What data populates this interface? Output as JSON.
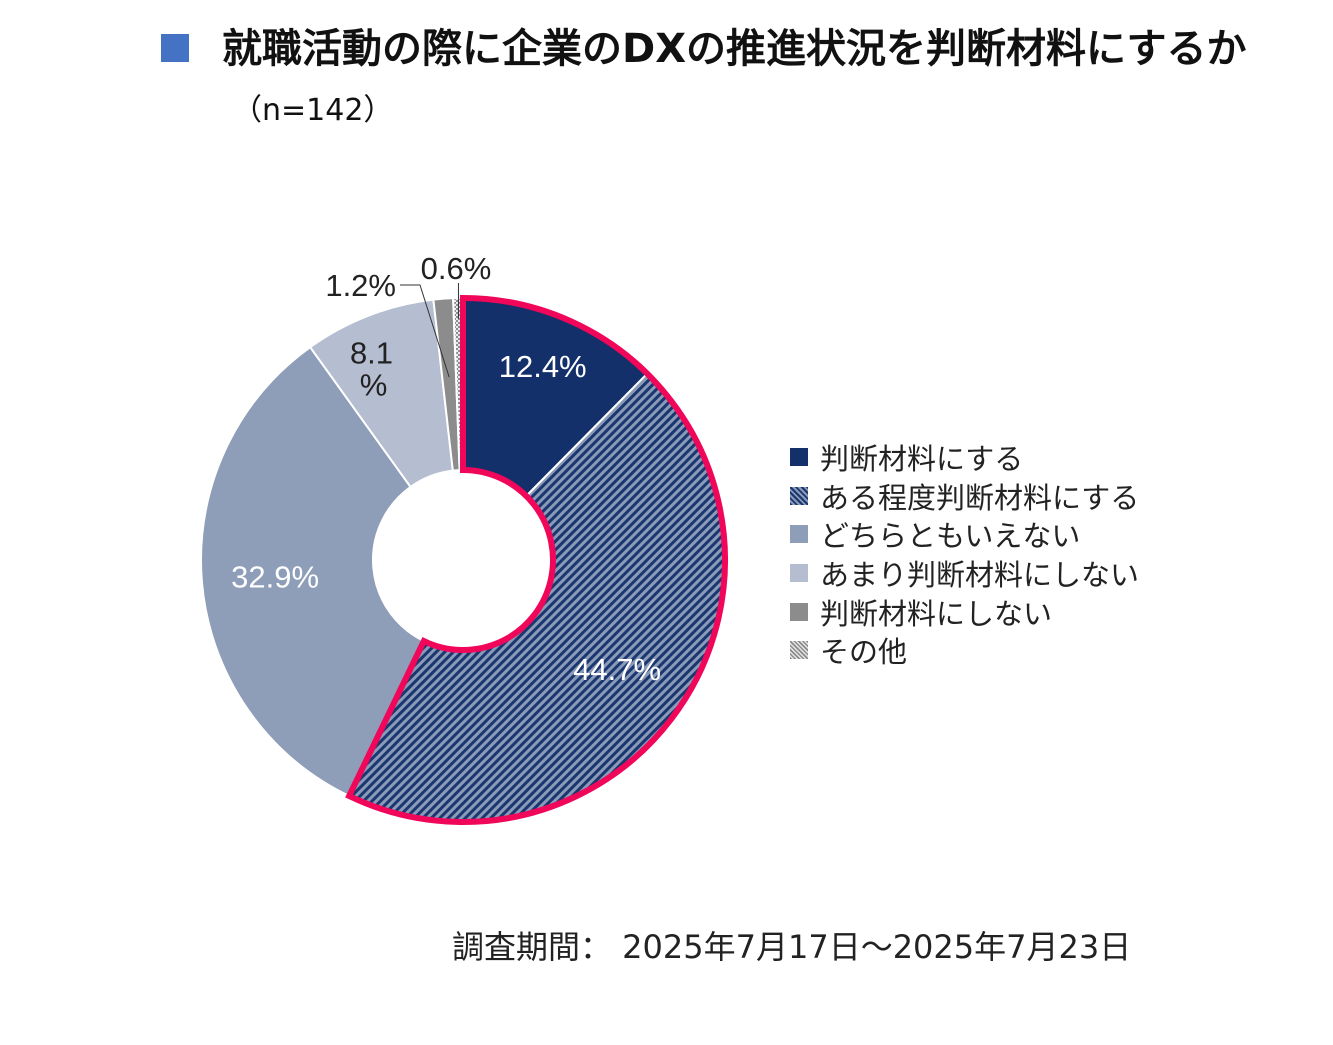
{
  "title": {
    "main": "就職活動の際に企業のDXの推進状況を判断材料にするか",
    "sample": "（n=142）"
  },
  "chart_data": {
    "type": "pie",
    "style": "donut",
    "categories": [
      "判断材料にする",
      "ある程度判断材料にする",
      "どちらともいえない",
      "あまり判断材料にしない",
      "判断材料にしない",
      "その他"
    ],
    "values": [
      12.4,
      44.7,
      32.9,
      8.1,
      1.2,
      0.6
    ],
    "unit": "%",
    "colors": [
      "#13306b",
      "#8a9ab8",
      "#8e9db8",
      "#b5bdd1",
      "#8c8c8c",
      "#d4d4d4"
    ],
    "patterns": [
      "solid",
      "diagonal-hatch",
      "solid",
      "solid",
      "solid",
      "dotted-hatch"
    ],
    "highlight": {
      "categories": [
        "判断材料にする",
        "ある程度判断材料にする"
      ],
      "color": "#f0075a"
    },
    "labels": [
      "12.4%",
      "44.7%",
      "32.9%",
      "8.1%",
      "1.2%",
      "0.6%"
    ],
    "legend_position": "right"
  },
  "footer": {
    "period": "調査期間： 2025年7月17日～2025年7月23日"
  }
}
